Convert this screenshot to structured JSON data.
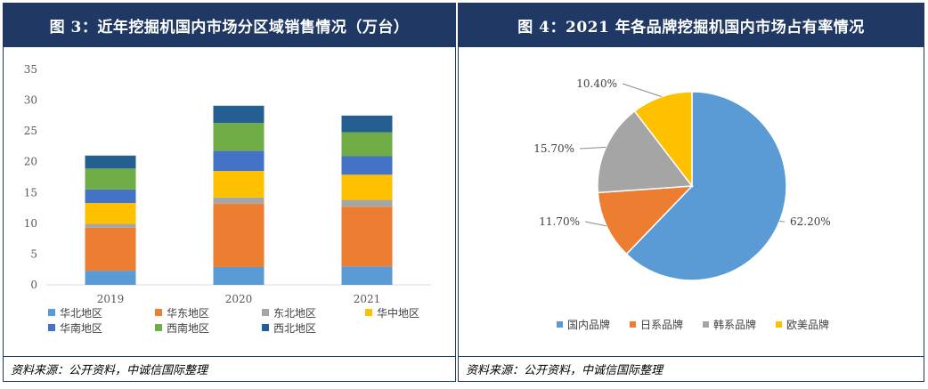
{
  "left": {
    "title": "图 3：近年挖掘机国内市场分区域销售情况（万台）",
    "source": "资料来源：公开资料，中诚信国际整理"
  },
  "right": {
    "title": "图 4：2021 年各品牌挖掘机国内市场占有率情况",
    "source": "资料来源：公开资料，中诚信国际整理"
  },
  "chart_data": [
    {
      "type": "bar",
      "stacked": true,
      "title": "图 3：近年挖掘机国内市场分区域销售情况（万台）",
      "categories": [
        "2019",
        "2020",
        "2021"
      ],
      "ylim": [
        0,
        35
      ],
      "yticks": [
        "0",
        "5",
        "10",
        "15",
        "20",
        "25",
        "30",
        "35"
      ],
      "series": [
        {
          "name": "华北地区",
          "color": "#5b9bd5",
          "values": [
            2.3,
            2.9,
            3.0
          ]
        },
        {
          "name": "华东地区",
          "color": "#ed7d31",
          "values": [
            7.0,
            10.3,
            9.7
          ]
        },
        {
          "name": "东北地区",
          "color": "#a5a5a5",
          "values": [
            0.6,
            1.0,
            1.1
          ]
        },
        {
          "name": "华中地区",
          "color": "#ffc000",
          "values": [
            3.4,
            4.3,
            4.1
          ]
        },
        {
          "name": "华南地区",
          "color": "#4472c4",
          "values": [
            2.2,
            3.3,
            3.0
          ]
        },
        {
          "name": "西南地区",
          "color": "#70ad47",
          "values": [
            3.4,
            4.5,
            3.9
          ]
        },
        {
          "name": "西北地区",
          "color": "#255e91",
          "values": [
            2.1,
            2.8,
            2.7
          ]
        }
      ]
    },
    {
      "type": "pie",
      "title": "图 4：2021 年各品牌挖掘机国内市场占有率情况",
      "slices": [
        {
          "name": "国内品牌",
          "value": 62.2,
          "label": "62.20%",
          "color": "#5b9bd5"
        },
        {
          "name": "日系品牌",
          "value": 11.7,
          "label": "11.70%",
          "color": "#ed7d31"
        },
        {
          "name": "韩系品牌",
          "value": 15.7,
          "label": "15.70%",
          "color": "#a5a5a5"
        },
        {
          "name": "欧美品牌",
          "value": 10.4,
          "label": "10.40%",
          "color": "#ffc000"
        }
      ]
    }
  ]
}
